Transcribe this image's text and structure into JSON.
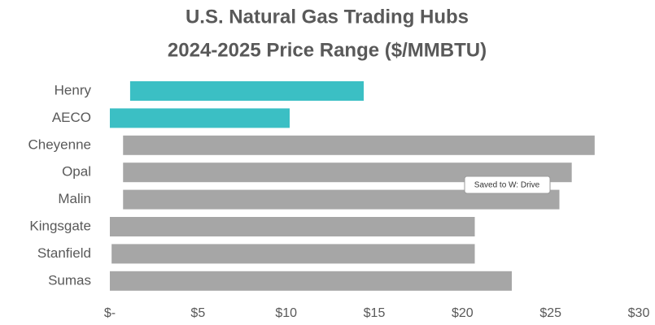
{
  "chart_data": {
    "type": "range_bar",
    "title": "U.S. Natural Gas Trading Hubs",
    "subtitle": "2024-2025 Price Range ($/MMBTU)",
    "categories": [
      "Henry",
      "AECO",
      "Cheyenne",
      "Opal",
      "Malin",
      "Kingsgate",
      "Stanfield",
      "Sumas"
    ],
    "low": [
      1.15,
      0,
      0.75,
      0.75,
      0.75,
      0,
      0.1,
      0
    ],
    "high": [
      14.4,
      10.2,
      27.5,
      26.2,
      25.5,
      20.7,
      20.7,
      22.8
    ],
    "colors": [
      "#3bbfc4",
      "#3bbfc4",
      "#a6a6a6",
      "#a6a6a6",
      "#a6a6a6",
      "#a6a6a6",
      "#a6a6a6",
      "#a6a6a6"
    ],
    "xlim": [
      0,
      30
    ],
    "xticks": [
      {
        "value": 0,
        "label": "$-"
      },
      {
        "value": 5,
        "label": "$5"
      },
      {
        "value": 10,
        "label": "$10"
      },
      {
        "value": 15,
        "label": "$15"
      },
      {
        "value": 20,
        "label": "$20"
      },
      {
        "value": 25,
        "label": "$25"
      },
      {
        "value": 30,
        "label": "$30"
      }
    ],
    "grid": false,
    "tooltip": "Saved to W: Drive"
  }
}
